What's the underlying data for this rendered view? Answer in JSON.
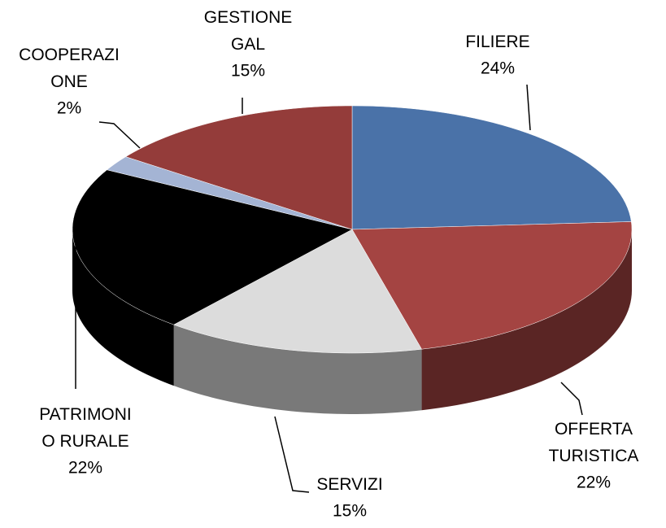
{
  "chart_data": {
    "type": "pie3d",
    "categories": [
      "FILIERE",
      "OFFERTA TURISTICA",
      "SERVIZI",
      "PATRIMONIO RURALE",
      "COOPERAZIONE",
      "GESTIONE GAL"
    ],
    "values": [
      24,
      22,
      15,
      22,
      2,
      15
    ],
    "value_labels": [
      "24%",
      "22%",
      "15%",
      "22%",
      "2%",
      "15%"
    ],
    "colors": [
      "#4a72a8",
      "#a44442",
      "#dcdcdc",
      "#000000",
      "#a4b4d4",
      "#943c3a"
    ]
  }
}
